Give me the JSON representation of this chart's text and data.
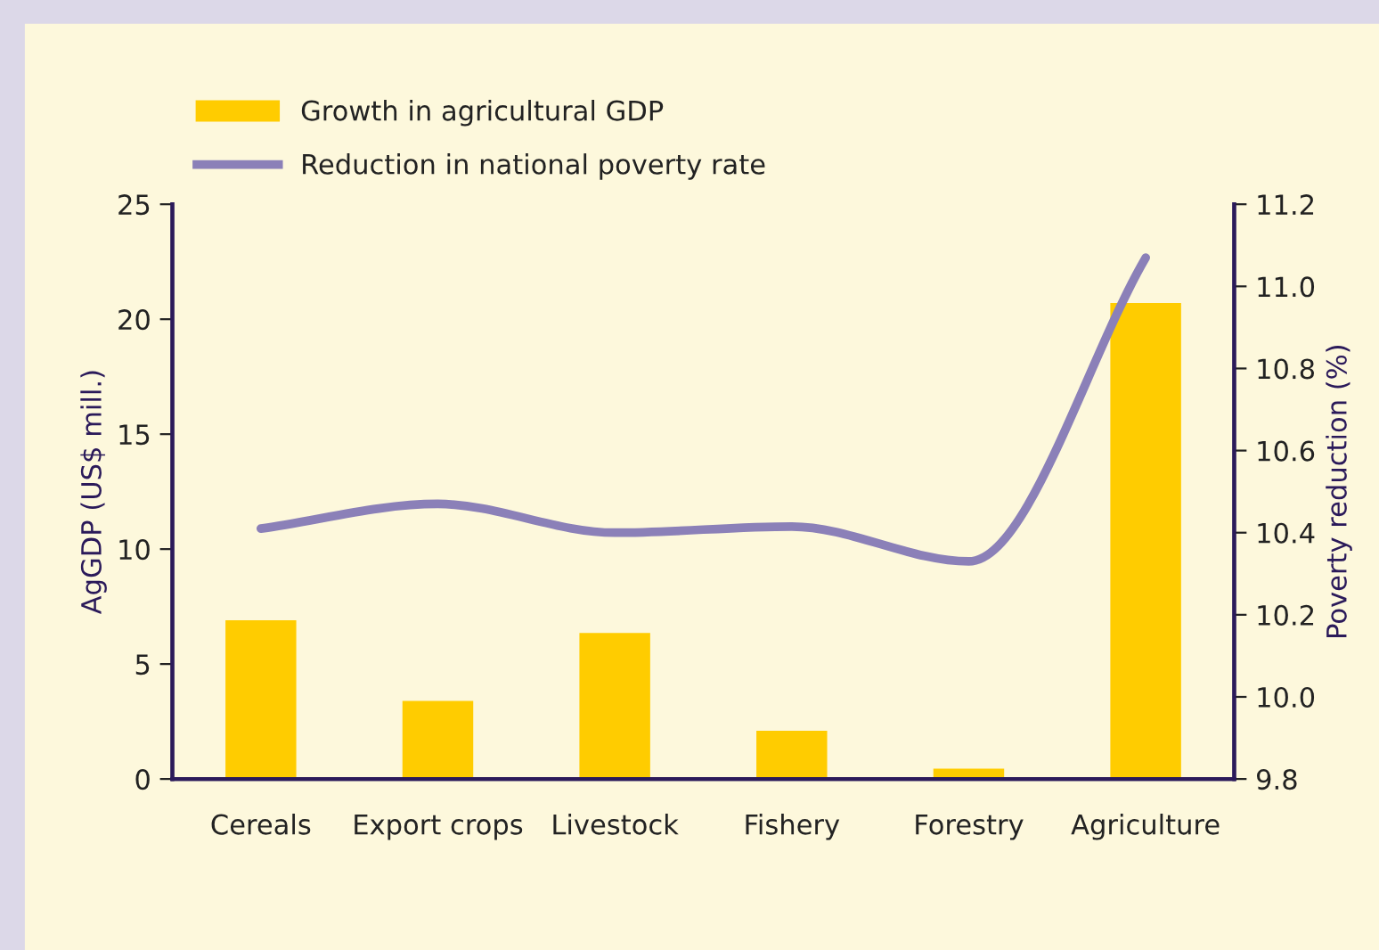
{
  "chart_data": {
    "type": "bar",
    "ylabel": "AgGDP (US$ mill.)",
    "y2label": "Poverty reduction (%)",
    "categories": [
      "Cereals",
      "Export crops",
      "Livestock",
      "Fishery",
      "Forestry",
      "Agriculture"
    ],
    "series": [
      {
        "name": "Growth in agricultural GDP",
        "color": "#ffcc00",
        "values": [
          6.9,
          3.4,
          6.35,
          2.1,
          0.45,
          20.7
        ]
      },
      {
        "name": "Reduction in national poverty rate",
        "type": "line",
        "axis": "y2",
        "color": "#8b80b8",
        "values": [
          10.41,
          10.47,
          10.4,
          10.415,
          10.33,
          11.07
        ]
      }
    ],
    "ylim": [
      0,
      25
    ],
    "yticks": [
      0,
      5,
      10,
      15,
      20,
      25
    ],
    "y2lim": [
      9.8,
      11.2
    ],
    "y2ticks": [
      {
        "value": 9.8,
        "label": "9.8"
      },
      {
        "value": 10.0,
        "label": "10.0"
      },
      {
        "value": 10.2,
        "label": "10.2"
      },
      {
        "value": 10.4,
        "label": "10.4"
      },
      {
        "value": 10.6,
        "label": "10.6"
      },
      {
        "value": 10.8,
        "label": "10.8"
      },
      {
        "value": 11.0,
        "label": "11.0"
      },
      {
        "value": 11.2,
        "label": "11.2"
      }
    ],
    "grid": false,
    "legend": "top left",
    "marker": "none"
  }
}
